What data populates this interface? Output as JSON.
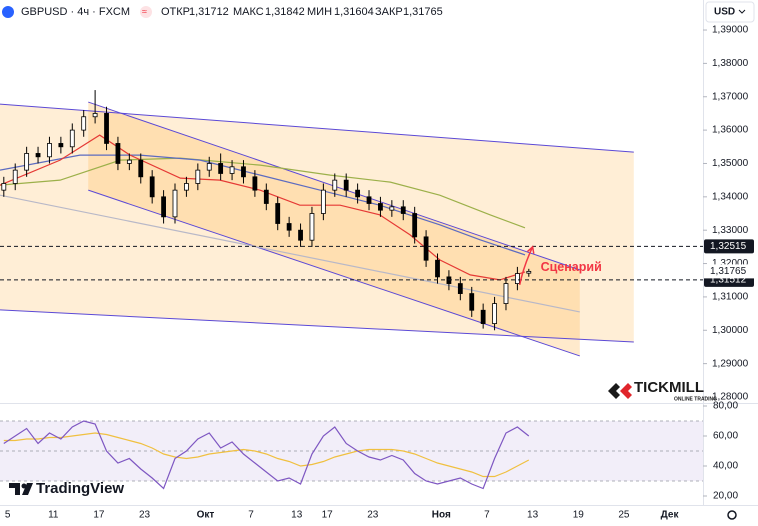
{
  "header": {
    "symbol": "GBPUSD · 4ч · FXCM",
    "currency": "USD",
    "legend": [
      {
        "name": "ОТКР",
        "text": "1,31712"
      },
      {
        "name": "МАКС",
        "text": "1,31842"
      },
      {
        "name": "МИН",
        "text": "1,31604"
      },
      {
        "name": "ЗАКР",
        "text": "1,31765"
      }
    ],
    "tickmill": "TICKMILL",
    "tickmill_sub": "ONLINE TRADING",
    "tradingview": "TradingView"
  },
  "chart_data": [
    {
      "type": "candlestick",
      "up_color": "#ffffff",
      "down_color": "#000000",
      "wick_color": "#000000",
      "xlim": [
        4,
        96
      ],
      "xticks": [
        5,
        11,
        17,
        23,
        {
          "value": 31,
          "label": "Окт"
        },
        {
          "value": 37,
          "label": "7"
        },
        {
          "value": 43,
          "label": "13"
        },
        {
          "value": 47,
          "label": "17"
        },
        {
          "value": 53,
          "label": "23"
        },
        {
          "value": 62,
          "label": "Ноя"
        },
        {
          "value": 68,
          "label": "7"
        },
        {
          "value": 74,
          "label": "13"
        },
        {
          "value": 80,
          "label": "19"
        },
        {
          "value": 86,
          "label": "25"
        },
        {
          "value": 92,
          "label": "Дек"
        }
      ],
      "ylim": [
        1.2776,
        1.399
      ],
      "yticks": [
        {
          "value": 1.39,
          "label": "1,39000"
        },
        {
          "value": 1.38,
          "label": "1,38000"
        },
        {
          "value": 1.37,
          "label": "1,37000"
        },
        {
          "value": 1.36,
          "label": "1,36000"
        },
        {
          "value": 1.35,
          "label": "1,35000"
        },
        {
          "value": 1.34,
          "label": "1,34000"
        },
        {
          "value": 1.33,
          "label": "1,33000"
        },
        {
          "value": 1.32,
          "label": "1,32000"
        },
        {
          "value": 1.31,
          "label": "1,31000"
        },
        {
          "value": 1.3,
          "label": "1,30000"
        },
        {
          "value": 1.29,
          "label": "1,29000"
        },
        {
          "value": 1.28,
          "label": "1,28000"
        }
      ],
      "x": [
        4.5,
        6,
        7.5,
        9,
        10.5,
        12,
        13.5,
        15,
        16.5,
        18,
        19.5,
        21,
        22.5,
        24,
        25.5,
        27,
        28.5,
        30,
        31.5,
        33,
        34.5,
        36,
        37.5,
        39,
        40.5,
        42,
        43.5,
        45,
        46.5,
        48,
        49.5,
        51,
        52.5,
        54,
        55.5,
        57,
        58.5,
        60,
        61.5,
        63,
        64.5,
        66,
        67.5,
        69,
        70.5,
        72,
        73.5
      ],
      "open": [
        1.342,
        1.344,
        1.348,
        1.353,
        1.352,
        1.356,
        1.355,
        1.36,
        1.364,
        1.365,
        1.356,
        1.35,
        1.351,
        1.346,
        1.34,
        1.334,
        1.342,
        1.344,
        1.348,
        1.35,
        1.347,
        1.349,
        1.346,
        1.342,
        1.338,
        1.332,
        1.33,
        1.327,
        1.335,
        1.342,
        1.345,
        1.342,
        1.34,
        1.338,
        1.336,
        1.337,
        1.335,
        1.328,
        1.321,
        1.316,
        1.314,
        1.311,
        1.306,
        1.302,
        1.308,
        1.314,
        1.31712
      ],
      "high": [
        1.346,
        1.35,
        1.355,
        1.355,
        1.358,
        1.358,
        1.362,
        1.366,
        1.372,
        1.367,
        1.358,
        1.353,
        1.353,
        1.348,
        1.342,
        1.344,
        1.346,
        1.35,
        1.352,
        1.353,
        1.351,
        1.351,
        1.348,
        1.344,
        1.34,
        1.334,
        1.332,
        1.337,
        1.344,
        1.347,
        1.347,
        1.344,
        1.342,
        1.34,
        1.339,
        1.339,
        1.337,
        1.33,
        1.323,
        1.318,
        1.316,
        1.313,
        1.308,
        1.31,
        1.316,
        1.319,
        1.31842
      ],
      "low": [
        1.34,
        1.342,
        1.346,
        1.35,
        1.35,
        1.353,
        1.353,
        1.358,
        1.362,
        1.354,
        1.348,
        1.348,
        1.344,
        1.338,
        1.332,
        1.332,
        1.34,
        1.342,
        1.346,
        1.345,
        1.345,
        1.344,
        1.34,
        1.336,
        1.33,
        1.328,
        1.325,
        1.325,
        1.333,
        1.34,
        1.34,
        1.338,
        1.336,
        1.334,
        1.334,
        1.333,
        1.326,
        1.319,
        1.314,
        1.312,
        1.309,
        1.304,
        1.3005,
        1.3,
        1.306,
        1.312,
        1.31604
      ],
      "close": [
        1.344,
        1.348,
        1.353,
        1.352,
        1.356,
        1.355,
        1.36,
        1.364,
        1.365,
        1.356,
        1.35,
        1.351,
        1.346,
        1.34,
        1.334,
        1.342,
        1.344,
        1.348,
        1.35,
        1.347,
        1.349,
        1.346,
        1.342,
        1.338,
        1.332,
        1.33,
        1.327,
        1.335,
        1.342,
        1.345,
        1.342,
        1.34,
        1.338,
        1.336,
        1.337,
        1.335,
        1.328,
        1.321,
        1.316,
        1.314,
        1.311,
        1.306,
        1.302,
        1.308,
        1.314,
        1.317,
        1.31765
      ],
      "channels": [
        {
          "fill": "#ffcf8a",
          "opacity": 0.35,
          "line_color": "#5b49d6",
          "upper": {
            "x": [
              4,
              87.3
            ],
            "y": [
              1.3678,
              1.3534
            ]
          },
          "lower": {
            "x": [
              4,
              87.3
            ],
            "y": [
              1.3061,
              1.2965
            ]
          }
        },
        {
          "fill": "#ffc46e",
          "opacity": 0.35,
          "line_color": "#5b49d6",
          "upper": {
            "x": [
              15.6,
              80.2
            ],
            "y": [
              1.3684,
              1.3181
            ]
          },
          "lower": {
            "x": [
              15.6,
              80.2
            ],
            "y": [
              1.342,
              1.2923
            ]
          }
        }
      ],
      "lines": [
        {
          "color": "#b8b8c8",
          "x": [
            4,
            80.2
          ],
          "values": [
            1.3405,
            1.3055
          ]
        },
        {
          "color": "#9cb04a",
          "x": [
            4,
            11.9,
            19.8,
            27.7,
            38.2,
            47.4,
            55.3,
            61.8,
            68.4,
            73
          ],
          "values": [
            1.3435,
            1.345,
            1.351,
            1.3516,
            1.3495,
            1.3465,
            1.3444,
            1.3405,
            1.3346,
            1.3307
          ]
        },
        {
          "color": "#5c6bc0",
          "x": [
            4,
            14.5,
            22.4,
            30.3,
            38.2,
            46.1,
            53.9,
            61.8,
            67.1,
            73
          ],
          "values": [
            1.348,
            1.3525,
            1.3525,
            1.351,
            1.3465,
            1.342,
            1.3375,
            1.3316,
            1.3271,
            1.3226
          ]
        },
        {
          "color": "#e53935",
          "x": [
            4,
            11.9,
            17.1,
            21.1,
            27.7,
            32.9,
            38.2,
            43.4,
            48.7,
            53.9,
            57.9,
            61.8,
            65.8,
            69.7,
            73
          ],
          "values": [
            1.3435,
            1.351,
            1.3585,
            1.3525,
            1.3456,
            1.345,
            1.342,
            1.3375,
            1.3375,
            1.3346,
            1.3286,
            1.3211,
            1.3166,
            1.3151,
            1.3175
          ]
        }
      ],
      "price_lines": [
        {
          "value": 1.32515,
          "label": "1,32515"
        },
        {
          "value": 1.31512,
          "label": "1,31512"
        }
      ],
      "last_price": {
        "value": 1.31765,
        "label": "1,31765"
      },
      "annotation": {
        "text": "Сценарий",
        "color": "#f23645",
        "x": [
          72.3,
          74
        ],
        "y": [
          1.3136,
          1.325
        ]
      }
    },
    {
      "type": "line",
      "xlim": [
        4,
        96
      ],
      "ylim": [
        14,
        82
      ],
      "yticks": [
        {
          "value": 80,
          "label": "80,00"
        },
        {
          "value": 60,
          "label": "60,00"
        },
        {
          "value": 40,
          "label": "40,00"
        },
        {
          "value": 20,
          "label": "20,00"
        }
      ],
      "band": [
        30,
        70
      ],
      "levels": [
        70,
        50,
        30
      ],
      "x": [
        4.5,
        6,
        7.5,
        9,
        10.5,
        12,
        13.5,
        15,
        16.5,
        18,
        19.5,
        21,
        22.5,
        24,
        25.5,
        27,
        28.5,
        30,
        31.5,
        33,
        34.5,
        36,
        37.5,
        39,
        40.5,
        42,
        43.5,
        45,
        46.5,
        48,
        49.5,
        51,
        52.5,
        54,
        55.5,
        57,
        58.5,
        60,
        61.5,
        63,
        64.5,
        66,
        67.5,
        69,
        70.5,
        72,
        73.5
      ],
      "series": [
        {
          "color": "#7e57c2",
          "values": [
            55,
            60,
            65,
            55,
            62,
            58,
            66,
            70,
            68,
            50,
            42,
            45,
            38,
            32,
            25,
            45,
            50,
            58,
            62,
            52,
            56,
            48,
            42,
            36,
            30,
            32,
            28,
            48,
            60,
            66,
            55,
            50,
            46,
            44,
            47,
            44,
            35,
            30,
            28,
            30,
            32,
            28,
            25,
            45,
            62,
            66,
            60
          ]
        },
        {
          "color": "#f0c040",
          "values": [
            57,
            57,
            58,
            58,
            59,
            59,
            60,
            61,
            62,
            61,
            59,
            57,
            55,
            52,
            48,
            46,
            45,
            46,
            48,
            49,
            50,
            51,
            50,
            48,
            45,
            43,
            40,
            41,
            43,
            46,
            48,
            50,
            51,
            51,
            51,
            50,
            48,
            45,
            42,
            40,
            38,
            36,
            33,
            33,
            36,
            40,
            44
          ]
        }
      ]
    }
  ]
}
